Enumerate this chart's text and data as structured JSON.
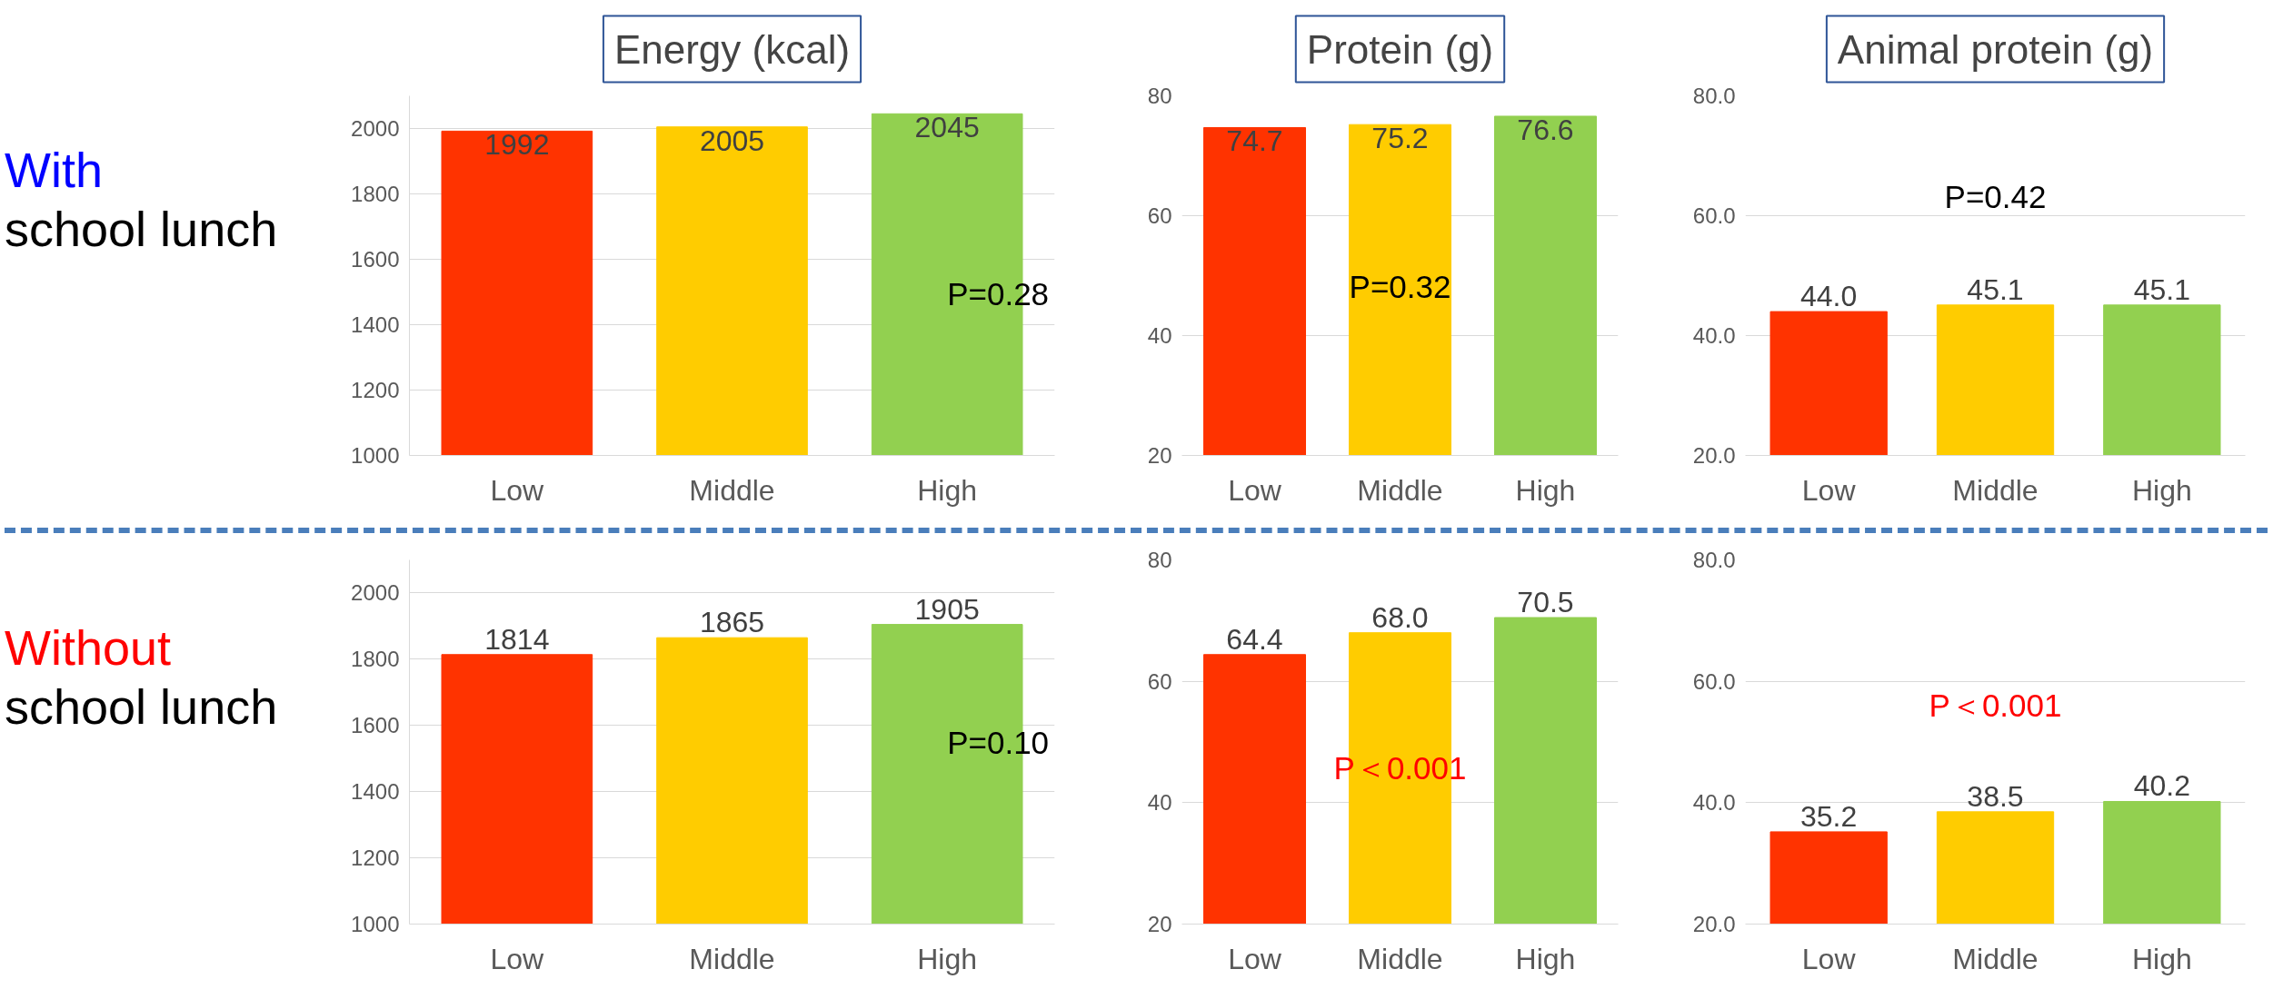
{
  "chart_data": [
    {
      "type": "bar",
      "title": "Energy (kcal)",
      "categories": [
        "Low",
        "Middle",
        "High"
      ],
      "values": [
        1992,
        2005,
        2045
      ],
      "colors": [
        "#ff3300",
        "#ffcc00",
        "#92d050"
      ],
      "value_labels": [
        "1992",
        "2005",
        "2045"
      ],
      "ylim": [
        1000,
        2100
      ],
      "yticks": [
        1000,
        1200,
        1400,
        1600,
        1800,
        2000
      ],
      "grid": "y",
      "annotations": [
        "With",
        "school lunch",
        "P=0.28"
      ]
    },
    {
      "type": "bar",
      "title": "Protein (g)",
      "categories": [
        "Low",
        "Middle",
        "High"
      ],
      "values": [
        74.7,
        75.2,
        76.6
      ],
      "colors": [
        "#ff3300",
        "#ffcc00",
        "#92d050"
      ],
      "value_labels": [
        "74.7",
        "75.2",
        "76.6"
      ],
      "ylim": [
        20,
        80
      ],
      "yticks": [
        20,
        40,
        60,
        80
      ],
      "grid": "y",
      "annotations": [
        "P=0.32"
      ]
    },
    {
      "type": "bar",
      "title": "Animal protein (g)",
      "categories": [
        "Low",
        "Middle",
        "High"
      ],
      "values": [
        44.0,
        45.1,
        45.1
      ],
      "colors": [
        "#ff3300",
        "#ffcc00",
        "#92d050"
      ],
      "value_labels": [
        "44.0",
        "45.1",
        "45.1"
      ],
      "ylim": [
        20,
        80
      ],
      "yticks": [
        {
          "value": 20,
          "label": "20.0"
        },
        {
          "value": 40,
          "label": "40.0"
        },
        {
          "value": 60,
          "label": "60.0"
        },
        {
          "value": 80,
          "label": "80.0"
        }
      ],
      "grid": "y",
      "annotations": [
        "P=0.42"
      ]
    },
    {
      "type": "bar",
      "categories": [
        "Low",
        "Middle",
        "High"
      ],
      "values": [
        1814,
        1865,
        1905
      ],
      "colors": [
        "#ff3300",
        "#ffcc00",
        "#92d050"
      ],
      "value_labels": [
        "1814",
        "1865",
        "1905"
      ],
      "ylim": [
        1000,
        2100
      ],
      "yticks": [
        1000,
        1200,
        1400,
        1600,
        1800,
        2000
      ],
      "grid": "y",
      "annotations": [
        "Without",
        "school lunch",
        "P=0.10"
      ]
    },
    {
      "type": "bar",
      "categories": [
        "Low",
        "Middle",
        "High"
      ],
      "values": [
        64.4,
        68.0,
        70.5
      ],
      "colors": [
        "#ff3300",
        "#ffcc00",
        "#92d050"
      ],
      "value_labels": [
        "64.4",
        "68.0",
        "70.5"
      ],
      "ylim": [
        20,
        80
      ],
      "yticks": [
        20,
        40,
        60,
        80
      ],
      "grid": "y",
      "annotations": [
        "P＜0.001"
      ]
    },
    {
      "type": "bar",
      "categories": [
        "Low",
        "Middle",
        "High"
      ],
      "values": [
        35.2,
        38.5,
        40.2
      ],
      "colors": [
        "#ff3300",
        "#ffcc00",
        "#92d050"
      ],
      "value_labels": [
        "35.2",
        "38.5",
        "40.2"
      ],
      "ylim": [
        20,
        80
      ],
      "yticks": [
        {
          "value": 20,
          "label": "20.0"
        },
        {
          "value": 40,
          "label": "40.0"
        },
        {
          "value": 60,
          "label": "60.0"
        },
        {
          "value": 80,
          "label": "80.0"
        }
      ],
      "grid": "y",
      "annotations": [
        "P＜0.001"
      ]
    }
  ]
}
